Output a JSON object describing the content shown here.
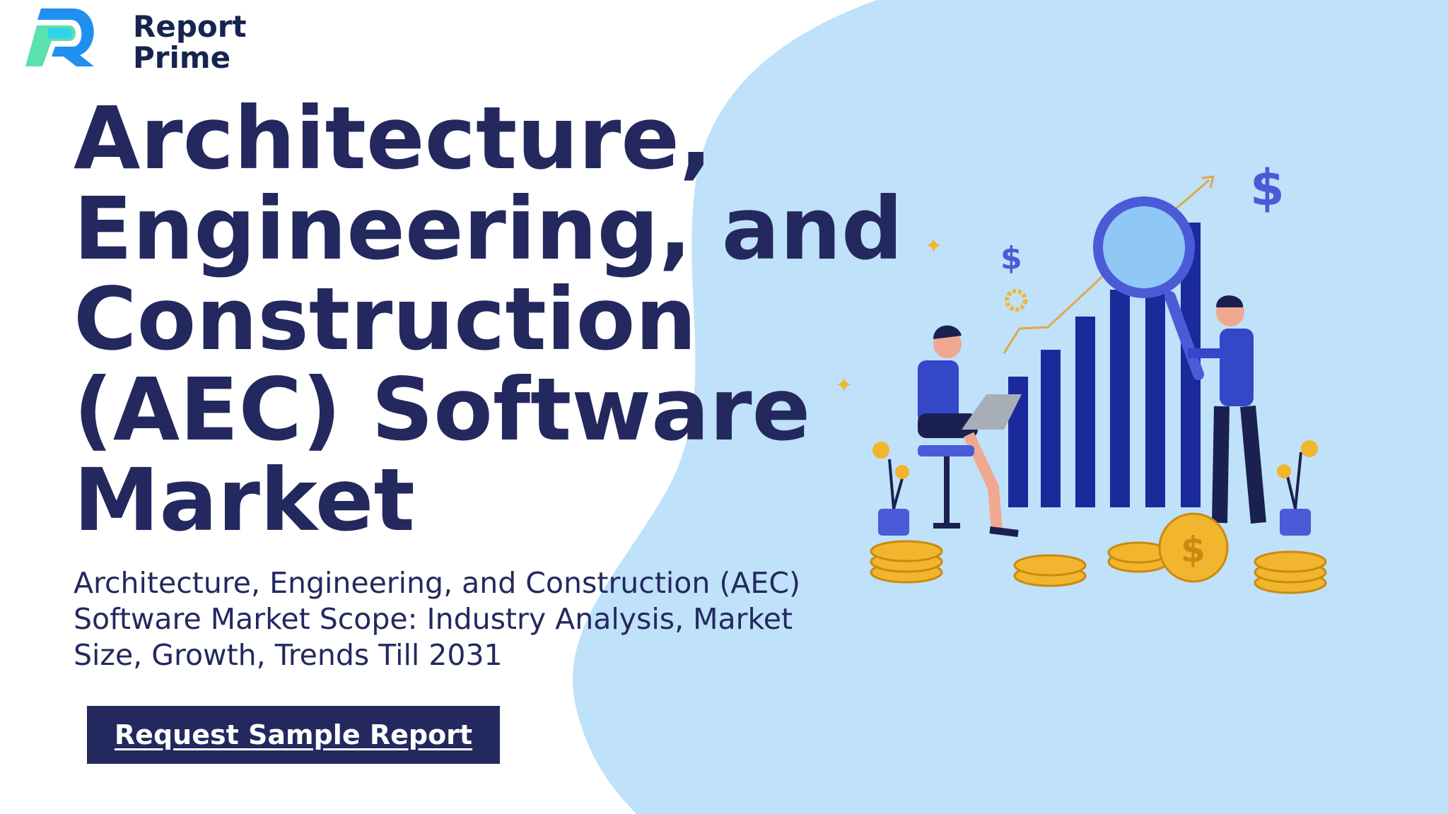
{
  "brand": {
    "name_line1": "Report",
    "name_line2": "Prime"
  },
  "hero": {
    "title": "Architecture, Engineering, and Construction (AEC) Software Market",
    "subtitle": "Architecture, Engineering, and Construction (AEC) Software Market Scope: Industry Analysis, Market Size, Growth, Trends Till 2031",
    "cta_label": "Request Sample Report"
  },
  "colors": {
    "primary": "#23295e",
    "blob": "#bfe1f9",
    "bars": "#1a2a9a",
    "accent_gold": "#f2b52e"
  },
  "illustration": {
    "icons": [
      "dollar-icon",
      "magnifier-icon",
      "bar-chart-icon",
      "coin-icon",
      "plant-icon",
      "gear-icon",
      "sparkle-icon"
    ]
  }
}
